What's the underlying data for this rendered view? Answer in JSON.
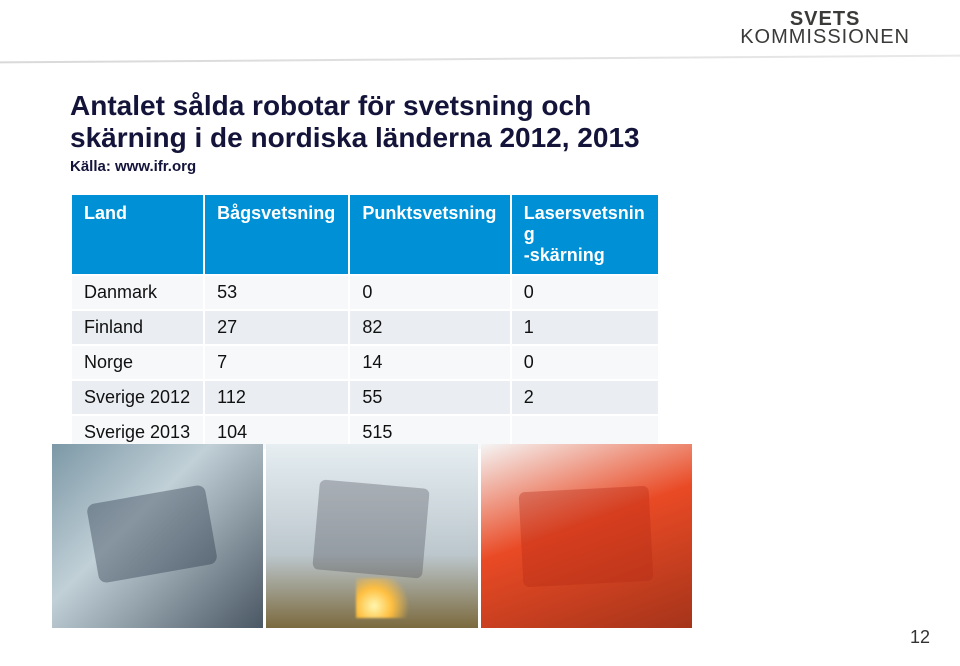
{
  "logo": {
    "line1": "SVETS",
    "line2": "KOMMISSIONEN",
    "color": "#3a3a39"
  },
  "title": "Antalet sålda robotar för svetsning och skärning i de nordiska länderna 2012, 2013",
  "source": "Källa: www.ifr.org",
  "title_color": "#14143a",
  "title_fontsize": 28,
  "source_fontsize": 15,
  "table": {
    "header_bg": "#0090d6",
    "header_text_color": "#ffffff",
    "row_odd_bg": "#f6f8fa",
    "row_even_bg": "#eaeef2",
    "fontsize": 18,
    "columns": [
      "Land",
      "Bågsvetsning",
      "Punktsvetsning",
      "Lasersvetsning -skärning"
    ],
    "col3_multiline": "Lasersvetsning\n-skärning",
    "rows": [
      {
        "land": "Danmark",
        "bag": "53",
        "punkt": "0",
        "laser": "0"
      },
      {
        "land": "Finland",
        "bag": "27",
        "punkt": "82",
        "laser": "1"
      },
      {
        "land": "Norge",
        "bag": "7",
        "punkt": "14",
        "laser": "0"
      },
      {
        "land": "Sverige 2012",
        "bag": "112",
        "punkt": "55",
        "laser": "2"
      },
      {
        "land": "Sverige 2013",
        "bag": "104",
        "punkt": "515",
        "laser": ""
      }
    ]
  },
  "images": {
    "count": 3,
    "strip_width": 640,
    "strip_height": 184,
    "descriptions": [
      "Industrial welding robot arm, blue-grey tones",
      "Welding robot cell with bright sparks, light tones",
      "Orange industrial robot arm in workshop"
    ],
    "dominant_colors": [
      "#7c98a6",
      "#e6eef2",
      "#e94a25"
    ]
  },
  "page_number": "12",
  "background_color": "#ffffff"
}
